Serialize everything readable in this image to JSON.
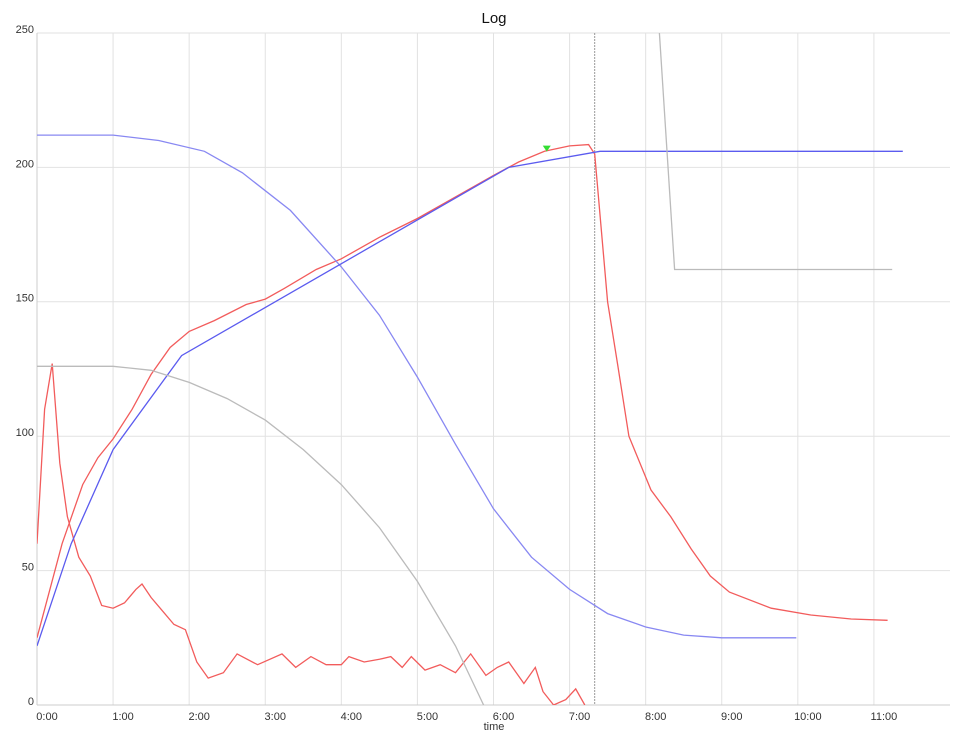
{
  "chart_data": {
    "type": "line",
    "title": "Log",
    "x_label": "time",
    "xlim": [
      0,
      12
    ],
    "ylim": [
      0,
      250
    ],
    "xticks": [
      {
        "value": 0,
        "label": "0:00"
      },
      {
        "value": 1,
        "label": "1:00"
      },
      {
        "value": 2,
        "label": "2:00"
      },
      {
        "value": 3,
        "label": "3:00"
      },
      {
        "value": 4,
        "label": "4:00"
      },
      {
        "value": 5,
        "label": "5:00"
      },
      {
        "value": 6,
        "label": "6:00"
      },
      {
        "value": 7,
        "label": "7:00"
      },
      {
        "value": 8,
        "label": "8:00"
      },
      {
        "value": 9,
        "label": "9:00"
      },
      {
        "value": 10,
        "label": "10:00"
      },
      {
        "value": 11,
        "label": "11:00"
      }
    ],
    "yticks": [
      0,
      50,
      100,
      150,
      200,
      250
    ],
    "grid": true,
    "vlines": [
      {
        "x": 7.33,
        "color": "#999999"
      }
    ],
    "markers": [
      {
        "x": 6.7,
        "y": 207,
        "color": "#33dd33"
      }
    ],
    "series": [
      {
        "color": "#f25c5c",
        "x": [
          0,
          0.33,
          0.6,
          0.8,
          1.0,
          1.25,
          1.5,
          1.75,
          2.0,
          2.33,
          2.75,
          3.0,
          3.25,
          3.67,
          4.0,
          4.5,
          5.0,
          5.5,
          6.0,
          6.33,
          6.67,
          7.0,
          7.25,
          7.33,
          7.5,
          7.63,
          7.78,
          8.07,
          8.33,
          8.6,
          8.85,
          9.1,
          9.65,
          10.17,
          10.7,
          11.18
        ],
        "values": [
          25,
          60,
          82,
          92,
          99,
          110,
          123,
          133,
          139,
          143,
          149,
          151,
          155,
          162,
          166,
          174,
          181,
          189,
          197,
          202,
          206,
          208,
          208.5,
          205,
          150,
          127,
          100,
          80,
          70,
          58,
          48,
          42,
          36,
          33.5,
          32,
          31.5
        ]
      },
      {
        "color": "#f25c5c",
        "x": [
          0,
          0.1,
          0.2,
          0.3,
          0.4,
          0.55,
          0.7,
          0.85,
          1.0,
          1.15,
          1.3,
          1.38,
          1.5,
          1.65,
          1.8,
          1.95,
          2.1,
          2.25,
          2.45,
          2.63,
          2.9,
          3.22,
          3.4,
          3.6,
          3.8,
          4.0,
          4.1,
          4.3,
          4.5,
          4.65,
          4.8,
          4.92,
          5.1,
          5.3,
          5.5,
          5.7,
          5.9,
          6.05,
          6.2,
          6.3,
          6.4,
          6.55,
          6.65,
          6.79,
          6.95,
          7.08,
          7.2
        ],
        "values": [
          60,
          110,
          127,
          90,
          70,
          55,
          48,
          37,
          36,
          38,
          43,
          45,
          40,
          35,
          30,
          28,
          16,
          10,
          12,
          19,
          15,
          19,
          14,
          18,
          15,
          15,
          18,
          16,
          17,
          18,
          14,
          18,
          13,
          15,
          12,
          19,
          11,
          14,
          16,
          12,
          8,
          14,
          5,
          0,
          2,
          6,
          0
        ]
      },
      {
        "color": "#8888f2",
        "x": [
          0,
          1.0,
          1.6,
          2.2,
          2.7,
          3.33,
          4.0,
          4.5,
          5.0,
          5.5,
          6.0,
          6.5,
          7.0,
          7.5,
          8.0,
          8.5,
          9.0,
          9.98
        ],
        "values": [
          212,
          212,
          210,
          206,
          198,
          184,
          163,
          145,
          122,
          97,
          73,
          55,
          43,
          34,
          29,
          26,
          25,
          25
        ]
      },
      {
        "color": "#5b5bef",
        "x": [
          0,
          0.45,
          1.0,
          1.9,
          6.2,
          7.4,
          11.38
        ],
        "values": [
          22,
          60,
          95,
          130,
          200,
          206,
          206
        ]
      },
      {
        "color": "#bbbbbb",
        "x": [
          0,
          1.0,
          1.5,
          2.0,
          2.5,
          3.0,
          3.5,
          4.0,
          4.5,
          5.0,
          5.5,
          5.87
        ],
        "values": [
          126,
          126,
          124.5,
          120,
          114,
          106,
          95,
          82,
          66,
          46,
          22,
          0
        ]
      },
      {
        "color": "#bbbbbb",
        "x": [
          8.18,
          8.38,
          11.24
        ],
        "values": [
          250,
          162,
          162
        ]
      }
    ]
  }
}
